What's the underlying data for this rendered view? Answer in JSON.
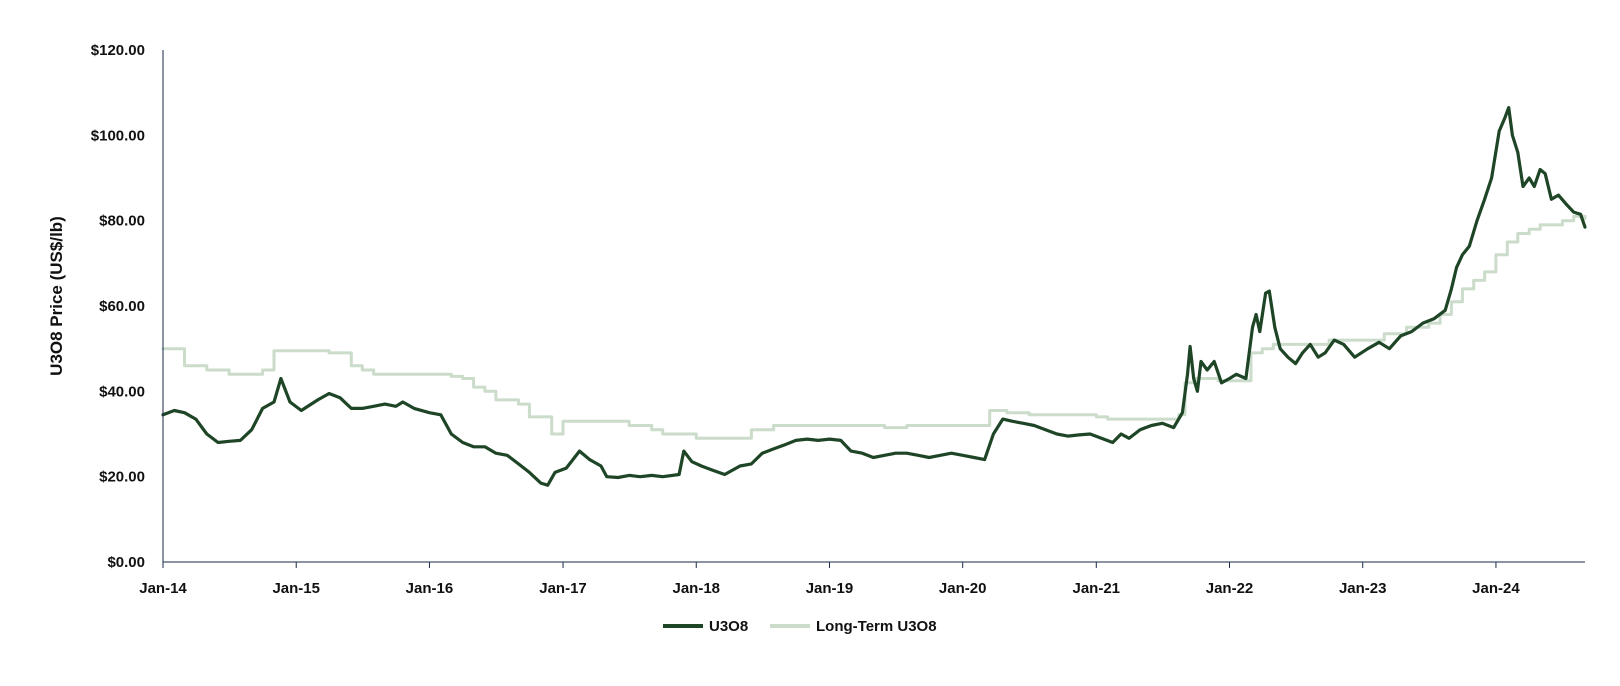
{
  "chart_data": {
    "type": "line",
    "title": "",
    "xlabel": "",
    "ylabel": "U3O8 Price (US$/lb)",
    "ylim": [
      0,
      120
    ],
    "xlim": [
      "2014-01-01",
      "2024-09-01"
    ],
    "grid": false,
    "legend_position": "bottom-center",
    "y_ticks": [
      {
        "value": 0,
        "label": "$0.00"
      },
      {
        "value": 20,
        "label": "$20.00"
      },
      {
        "value": 40,
        "label": "$40.00"
      },
      {
        "value": 60,
        "label": "$60.00"
      },
      {
        "value": 80,
        "label": "$80.00"
      },
      {
        "value": 100,
        "label": "$100.00"
      },
      {
        "value": 120,
        "label": "$120.00"
      }
    ],
    "x_ticks": [
      {
        "value": "2014-01-01",
        "label": "Jan-14"
      },
      {
        "value": "2015-01-01",
        "label": "Jan-15"
      },
      {
        "value": "2016-01-01",
        "label": "Jan-16"
      },
      {
        "value": "2017-01-01",
        "label": "Jan-17"
      },
      {
        "value": "2018-01-01",
        "label": "Jan-18"
      },
      {
        "value": "2019-01-01",
        "label": "Jan-19"
      },
      {
        "value": "2020-01-01",
        "label": "Jan-20"
      },
      {
        "value": "2021-01-01",
        "label": "Jan-21"
      },
      {
        "value": "2022-01-01",
        "label": "Jan-22"
      },
      {
        "value": "2023-01-01",
        "label": "Jan-23"
      },
      {
        "value": "2024-01-01",
        "label": "Jan-24"
      }
    ],
    "series": [
      {
        "name": "U3O8",
        "color": "#1e4526",
        "style": "line",
        "points": [
          [
            "2014-01-01",
            34.5
          ],
          [
            "2014-02-01",
            35.5
          ],
          [
            "2014-03-01",
            35.0
          ],
          [
            "2014-04-01",
            33.5
          ],
          [
            "2014-05-01",
            30.0
          ],
          [
            "2014-06-01",
            28.0
          ],
          [
            "2014-07-01",
            28.3
          ],
          [
            "2014-08-01",
            28.5
          ],
          [
            "2014-09-01",
            31.0
          ],
          [
            "2014-10-01",
            36.0
          ],
          [
            "2014-11-01",
            37.5
          ],
          [
            "2014-11-20",
            43.0
          ],
          [
            "2014-12-15",
            37.5
          ],
          [
            "2015-01-15",
            35.5
          ],
          [
            "2015-03-01",
            38.0
          ],
          [
            "2015-04-01",
            39.5
          ],
          [
            "2015-05-01",
            38.5
          ],
          [
            "2015-06-01",
            36.0
          ],
          [
            "2015-07-01",
            36.0
          ],
          [
            "2015-08-01",
            36.5
          ],
          [
            "2015-09-01",
            37.0
          ],
          [
            "2015-10-01",
            36.5
          ],
          [
            "2015-10-20",
            37.5
          ],
          [
            "2015-11-20",
            36.0
          ],
          [
            "2016-01-01",
            35.0
          ],
          [
            "2016-02-01",
            34.5
          ],
          [
            "2016-03-01",
            30.0
          ],
          [
            "2016-04-01",
            28.0
          ],
          [
            "2016-05-01",
            27.0
          ],
          [
            "2016-06-01",
            27.0
          ],
          [
            "2016-07-01",
            25.5
          ],
          [
            "2016-08-01",
            25.0
          ],
          [
            "2016-09-01",
            23.0
          ],
          [
            "2016-10-01",
            21.0
          ],
          [
            "2016-11-01",
            18.5
          ],
          [
            "2016-11-20",
            18.0
          ],
          [
            "2016-12-10",
            21.0
          ],
          [
            "2017-01-10",
            22.0
          ],
          [
            "2017-02-15",
            26.0
          ],
          [
            "2017-03-15",
            24.0
          ],
          [
            "2017-04-15",
            22.5
          ],
          [
            "2017-05-01",
            20.0
          ],
          [
            "2017-06-01",
            19.8
          ],
          [
            "2017-07-01",
            20.3
          ],
          [
            "2017-08-01",
            20.0
          ],
          [
            "2017-09-01",
            20.3
          ],
          [
            "2017-10-01",
            20.0
          ],
          [
            "2017-11-15",
            20.5
          ],
          [
            "2017-11-28",
            26.0
          ],
          [
            "2017-12-20",
            23.5
          ],
          [
            "2018-01-15",
            22.5
          ],
          [
            "2018-02-15",
            21.5
          ],
          [
            "2018-03-20",
            20.5
          ],
          [
            "2018-05-01",
            22.5
          ],
          [
            "2018-06-01",
            23.0
          ],
          [
            "2018-07-01",
            25.5
          ],
          [
            "2018-08-01",
            26.5
          ],
          [
            "2018-09-01",
            27.5
          ],
          [
            "2018-10-01",
            28.5
          ],
          [
            "2018-11-01",
            28.8
          ],
          [
            "2018-12-01",
            28.5
          ],
          [
            "2019-01-01",
            28.8
          ],
          [
            "2019-02-01",
            28.5
          ],
          [
            "2019-03-01",
            26.0
          ],
          [
            "2019-04-01",
            25.5
          ],
          [
            "2019-05-01",
            24.5
          ],
          [
            "2019-06-01",
            25.0
          ],
          [
            "2019-07-01",
            25.5
          ],
          [
            "2019-08-01",
            25.5
          ],
          [
            "2019-09-01",
            25.0
          ],
          [
            "2019-10-01",
            24.5
          ],
          [
            "2019-11-01",
            25.0
          ],
          [
            "2019-12-01",
            25.5
          ],
          [
            "2020-01-01",
            25.0
          ],
          [
            "2020-02-01",
            24.5
          ],
          [
            "2020-03-01",
            24.0
          ],
          [
            "2020-03-25",
            30.0
          ],
          [
            "2020-04-20",
            33.5
          ],
          [
            "2020-05-15",
            33.0
          ],
          [
            "2020-06-15",
            32.5
          ],
          [
            "2020-07-15",
            32.0
          ],
          [
            "2020-08-15",
            31.0
          ],
          [
            "2020-09-15",
            30.0
          ],
          [
            "2020-10-15",
            29.5
          ],
          [
            "2020-11-15",
            29.8
          ],
          [
            "2020-12-15",
            30.0
          ],
          [
            "2021-01-15",
            29.0
          ],
          [
            "2021-02-15",
            28.0
          ],
          [
            "2021-03-10",
            30.0
          ],
          [
            "2021-04-01",
            29.0
          ],
          [
            "2021-05-01",
            31.0
          ],
          [
            "2021-06-01",
            32.0
          ],
          [
            "2021-07-01",
            32.5
          ],
          [
            "2021-08-01",
            31.5
          ],
          [
            "2021-08-25",
            35.0
          ],
          [
            "2021-09-08",
            44.0
          ],
          [
            "2021-09-15",
            50.5
          ],
          [
            "2021-09-25",
            43.0
          ],
          [
            "2021-10-05",
            40.0
          ],
          [
            "2021-10-15",
            47.0
          ],
          [
            "2021-11-01",
            45.0
          ],
          [
            "2021-11-20",
            47.0
          ],
          [
            "2021-12-10",
            42.0
          ],
          [
            "2022-01-01",
            43.0
          ],
          [
            "2022-01-20",
            44.0
          ],
          [
            "2022-02-15",
            43.0
          ],
          [
            "2022-03-05",
            55.0
          ],
          [
            "2022-03-15",
            58.0
          ],
          [
            "2022-03-25",
            54.0
          ],
          [
            "2022-04-10",
            63.0
          ],
          [
            "2022-04-20",
            63.5
          ],
          [
            "2022-05-05",
            55.0
          ],
          [
            "2022-05-20",
            50.0
          ],
          [
            "2022-06-10",
            48.0
          ],
          [
            "2022-07-01",
            46.5
          ],
          [
            "2022-07-20",
            49.0
          ],
          [
            "2022-08-10",
            51.0
          ],
          [
            "2022-09-01",
            48.0
          ],
          [
            "2022-09-20",
            49.0
          ],
          [
            "2022-10-15",
            52.0
          ],
          [
            "2022-11-10",
            51.0
          ],
          [
            "2022-12-10",
            48.0
          ],
          [
            "2023-01-15",
            50.0
          ],
          [
            "2023-02-15",
            51.5
          ],
          [
            "2023-03-15",
            50.0
          ],
          [
            "2023-04-15",
            53.0
          ],
          [
            "2023-05-15",
            54.0
          ],
          [
            "2023-06-15",
            56.0
          ],
          [
            "2023-07-15",
            57.0
          ],
          [
            "2023-08-15",
            59.0
          ],
          [
            "2023-09-01",
            64.0
          ],
          [
            "2023-09-15",
            69.0
          ],
          [
            "2023-10-01",
            72.0
          ],
          [
            "2023-10-20",
            74.0
          ],
          [
            "2023-11-10",
            80.0
          ],
          [
            "2023-12-01",
            85.0
          ],
          [
            "2023-12-20",
            90.0
          ],
          [
            "2024-01-10",
            101.0
          ],
          [
            "2024-01-25",
            104.0
          ],
          [
            "2024-02-05",
            106.5
          ],
          [
            "2024-02-15",
            100.0
          ],
          [
            "2024-03-01",
            96.0
          ],
          [
            "2024-03-15",
            88.0
          ],
          [
            "2024-04-01",
            90.0
          ],
          [
            "2024-04-15",
            88.0
          ],
          [
            "2024-05-01",
            92.0
          ],
          [
            "2024-05-15",
            91.0
          ],
          [
            "2024-06-01",
            85.0
          ],
          [
            "2024-06-20",
            86.0
          ],
          [
            "2024-07-10",
            84.0
          ],
          [
            "2024-08-01",
            82.0
          ],
          [
            "2024-08-20",
            81.5
          ],
          [
            "2024-09-01",
            78.5
          ]
        ]
      },
      {
        "name": "Long-Term U3O8",
        "color": "#cbdccb",
        "style": "step",
        "points": [
          [
            "2014-01-01",
            50.0
          ],
          [
            "2014-03-01",
            46.0
          ],
          [
            "2014-05-01",
            45.0
          ],
          [
            "2014-07-01",
            44.0
          ],
          [
            "2014-10-01",
            45.0
          ],
          [
            "2014-11-01",
            49.5
          ],
          [
            "2015-04-01",
            49.0
          ],
          [
            "2015-06-01",
            46.0
          ],
          [
            "2015-07-01",
            45.0
          ],
          [
            "2015-08-01",
            44.0
          ],
          [
            "2016-03-01",
            43.5
          ],
          [
            "2016-04-01",
            43.0
          ],
          [
            "2016-05-01",
            41.0
          ],
          [
            "2016-06-01",
            40.0
          ],
          [
            "2016-07-01",
            38.0
          ],
          [
            "2016-09-01",
            37.0
          ],
          [
            "2016-10-01",
            34.0
          ],
          [
            "2016-12-01",
            30.0
          ],
          [
            "2017-01-01",
            33.0
          ],
          [
            "2017-07-01",
            32.0
          ],
          [
            "2017-09-01",
            31.0
          ],
          [
            "2017-10-01",
            30.0
          ],
          [
            "2018-01-01",
            29.0
          ],
          [
            "2018-06-01",
            31.0
          ],
          [
            "2018-08-01",
            32.0
          ],
          [
            "2019-06-01",
            31.5
          ],
          [
            "2019-08-01",
            32.0
          ],
          [
            "2020-03-01",
            32.0
          ],
          [
            "2020-03-15",
            35.5
          ],
          [
            "2020-05-01",
            35.0
          ],
          [
            "2020-07-01",
            34.5
          ],
          [
            "2021-01-01",
            34.0
          ],
          [
            "2021-02-01",
            33.5
          ],
          [
            "2021-08-15",
            34.5
          ],
          [
            "2021-09-01",
            42.0
          ],
          [
            "2021-10-01",
            43.0
          ],
          [
            "2021-12-01",
            42.5
          ],
          [
            "2022-03-01",
            49.0
          ],
          [
            "2022-04-01",
            50.0
          ],
          [
            "2022-05-01",
            51.0
          ],
          [
            "2022-10-01",
            52.0
          ],
          [
            "2023-01-01",
            52.0
          ],
          [
            "2023-03-01",
            53.5
          ],
          [
            "2023-05-01",
            55.0
          ],
          [
            "2023-07-01",
            56.0
          ],
          [
            "2023-08-01",
            58.0
          ],
          [
            "2023-09-01",
            61.0
          ],
          [
            "2023-10-01",
            64.0
          ],
          [
            "2023-11-01",
            66.0
          ],
          [
            "2023-12-01",
            68.0
          ],
          [
            "2024-01-01",
            72.0
          ],
          [
            "2024-02-01",
            75.0
          ],
          [
            "2024-03-01",
            77.0
          ],
          [
            "2024-04-01",
            78.0
          ],
          [
            "2024-05-01",
            79.0
          ],
          [
            "2024-07-01",
            80.0
          ],
          [
            "2024-08-01",
            81.0
          ],
          [
            "2024-09-01",
            80.5
          ]
        ]
      }
    ]
  }
}
